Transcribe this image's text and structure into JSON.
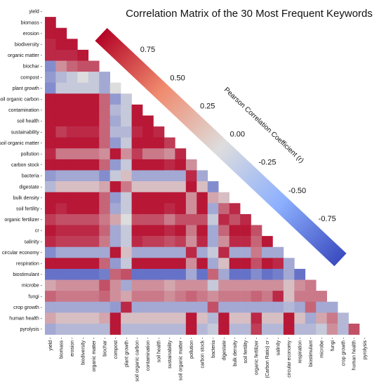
{
  "chart_data": {
    "type": "heatmap",
    "title": "Correlation Matrix of the 30 Most Frequent Keywords",
    "labels": [
      "yield",
      "biomass",
      "erosion",
      "biodiversity",
      "organic matter",
      "biochar",
      "compost",
      "plant growth",
      "soil organic carbon",
      "contamination",
      "soil health",
      "sustainability",
      "soil organic matter",
      "pollution",
      "carbon stock",
      "bacteria",
      "digestate",
      "bulk density",
      "soil fertility",
      "organic fertilizer",
      "cr",
      "salinity",
      "circular economy",
      "respiration",
      "biostimulant",
      "microbe",
      "fungi",
      "crop growth",
      "human health",
      "pyrolysis"
    ],
    "x_tick_labels": [
      "yield",
      "biomass",
      "erosion",
      "biodiversity",
      "organic matter",
      "biochar",
      "compost",
      "plant growth",
      "soil organic carbon",
      "contamination",
      "soil health",
      "sustainability",
      "soil organic matter",
      "pollution",
      "carbon stock",
      "bacteria",
      "digestate",
      "bulk density",
      "soil fertility",
      "organic fertilizer",
      "(Carbon Ratio) cr",
      "salinity",
      "circular economy",
      "respiration",
      "biostimulant",
      "microbe",
      "fungi",
      "crop growth",
      "human health",
      "pyrolysis"
    ],
    "matrix": [
      [],
      [
        0.9
      ],
      [
        0.9,
        0.9
      ],
      [
        0.8,
        0.9,
        0.9
      ],
      [
        0.8,
        0.8,
        0.8,
        0.9
      ],
      [
        -0.5,
        0.3,
        0.5,
        0.6,
        0.6
      ],
      [
        -0.4,
        -0.2,
        -0.1,
        0.0,
        -0.1,
        -0.3
      ],
      [
        -0.5,
        -0.1,
        -0.1,
        -0.1,
        -0.1,
        -0.3,
        0.0
      ],
      [
        0.9,
        0.9,
        0.9,
        0.9,
        0.9,
        0.5,
        -0.4,
        -0.1
      ],
      [
        0.9,
        0.9,
        0.9,
        0.9,
        0.9,
        0.5,
        -0.2,
        -0.1,
        0.9
      ],
      [
        0.9,
        0.9,
        0.9,
        0.9,
        0.9,
        0.5,
        -0.3,
        -0.1,
        0.9,
        0.9
      ],
      [
        0.9,
        0.7,
        0.8,
        0.8,
        0.8,
        0.5,
        -0.2,
        -0.2,
        0.8,
        0.9,
        0.8
      ],
      [
        0.9,
        0.9,
        0.9,
        0.9,
        0.9,
        0.5,
        -0.4,
        -0.1,
        0.9,
        0.9,
        0.9,
        0.7
      ],
      [
        0.8,
        0.4,
        0.4,
        0.4,
        0.4,
        0.3,
        0.9,
        0.3,
        0.7,
        0.4,
        0.4,
        0.3,
        0.8
      ],
      [
        0.9,
        0.9,
        0.9,
        0.9,
        0.9,
        0.5,
        -0.4,
        -0.1,
        0.9,
        0.9,
        0.9,
        0.8,
        0.9,
        0.3
      ],
      [
        -0.4,
        -0.3,
        -0.3,
        -0.3,
        -0.3,
        -0.5,
        -0.1,
        0.1,
        -0.3,
        -0.3,
        -0.3,
        -0.3,
        -0.3,
        0.8,
        -0.3
      ],
      [
        -0.2,
        0.1,
        0.1,
        0.1,
        0.1,
        0.2,
        0.9,
        0.4,
        0.1,
        0.1,
        0.1,
        0.1,
        0.1,
        0.9,
        0.1,
        -0.5
      ],
      [
        0.9,
        0.9,
        0.9,
        0.9,
        0.9,
        0.5,
        -0.4,
        -0.1,
        0.9,
        0.9,
        0.9,
        0.9,
        0.9,
        0.3,
        0.9,
        0.2,
        0.1
      ],
      [
        0.9,
        0.8,
        0.9,
        0.9,
        0.9,
        0.5,
        -0.3,
        -0.1,
        0.9,
        0.9,
        0.9,
        0.8,
        0.9,
        0.3,
        0.9,
        -0.3,
        0.5,
        0.8
      ],
      [
        0.7,
        0.6,
        0.6,
        0.6,
        0.6,
        0.4,
        0.2,
        0.0,
        0.6,
        0.6,
        0.6,
        0.4,
        0.6,
        0.6,
        0.6,
        -0.1,
        0.8,
        0.6,
        0.8
      ],
      [
        0.9,
        0.8,
        0.8,
        0.8,
        0.8,
        0.5,
        -0.3,
        -0.1,
        0.9,
        0.9,
        0.9,
        0.8,
        0.9,
        0.4,
        0.9,
        -0.3,
        0.5,
        0.9,
        0.9,
        0.6
      ],
      [
        0.8,
        0.7,
        0.7,
        0.7,
        0.7,
        0.4,
        -0.3,
        -0.1,
        0.8,
        0.7,
        0.7,
        0.6,
        0.7,
        0.3,
        0.8,
        -0.3,
        0.3,
        0.8,
        0.8,
        0.5,
        0.9
      ],
      [
        -0.5,
        -0.3,
        -0.3,
        -0.3,
        -0.3,
        -0.3,
        0.9,
        0.1,
        -0.3,
        -0.3,
        -0.3,
        -0.3,
        -0.3,
        0.8,
        -0.3,
        -0.1,
        0.8,
        -0.3,
        -0.3,
        0.4,
        -0.3,
        -0.3
      ],
      [
        0.9,
        0.9,
        0.9,
        0.9,
        0.9,
        0.5,
        -0.4,
        -0.1,
        0.9,
        0.9,
        0.9,
        0.9,
        0.9,
        0.3,
        0.9,
        -0.3,
        0.1,
        0.9,
        0.9,
        0.6,
        0.9,
        0.8,
        -0.3
      ],
      [
        -0.7,
        -0.7,
        -0.7,
        -0.7,
        -0.7,
        -0.6,
        0.5,
        0.6,
        -0.7,
        -0.7,
        -0.7,
        -0.7,
        -0.7,
        -0.3,
        -0.7,
        0.5,
        -0.3,
        -0.7,
        -0.7,
        -0.5,
        -0.7,
        -0.6,
        -0.3,
        -0.7
      ],
      [
        0.2,
        0.3,
        0.3,
        0.3,
        0.3,
        0.6,
        0.3,
        -0.3,
        0.3,
        0.3,
        0.3,
        0.2,
        0.3,
        0.3,
        0.3,
        -0.1,
        0.3,
        0.3,
        0.3,
        0.3,
        0.3,
        0.3,
        0.1,
        0.3,
        0.4
      ],
      [
        0.5,
        0.4,
        0.4,
        0.4,
        0.4,
        0.5,
        0.3,
        0.2,
        0.4,
        0.4,
        0.4,
        0.3,
        0.4,
        0.5,
        0.4,
        0.3,
        0.4,
        0.4,
        0.4,
        0.5,
        0.4,
        0.8,
        0.1,
        0.4,
        0.4,
        0.4
      ],
      [
        -0.3,
        -0.3,
        -0.3,
        -0.3,
        -0.3,
        -0.3,
        -0.4,
        0.8,
        -0.3,
        -0.3,
        -0.3,
        -0.3,
        -0.3,
        -0.3,
        -0.3,
        0.6,
        -0.3,
        -0.3,
        -0.3,
        -0.3,
        -0.3,
        -0.3,
        -0.2,
        -0.3,
        0.5,
        -0.3,
        -0.3
      ],
      [
        0.2,
        0.1,
        0.1,
        0.1,
        0.1,
        0.2,
        0.9,
        0.1,
        0.1,
        0.1,
        0.1,
        0.1,
        0.1,
        0.9,
        0.1,
        -0.2,
        0.9,
        0.1,
        0.1,
        0.8,
        0.1,
        0.1,
        0.9,
        0.1,
        -0.3,
        0.2,
        0.4,
        -0.2
      ],
      [
        -0.3,
        -0.2,
        -0.2,
        -0.2,
        -0.2,
        -0.2,
        0.9,
        -0.2,
        -0.2,
        -0.2,
        -0.2,
        -0.2,
        -0.2,
        0.9,
        -0.2,
        -0.1,
        0.9,
        -0.2,
        -0.2,
        0.7,
        -0.2,
        -0.2,
        0.9,
        -0.2,
        -0.2,
        -0.1,
        0.3,
        -0.2,
        0.6
      ]
    ],
    "colorbar": {
      "label": "Pearson Correlation Coefficient (r)",
      "ticks": [
        0.75,
        0.5,
        0.25,
        0.0,
        -0.25,
        -0.5,
        -0.75
      ],
      "tick_labels": [
        "0.75",
        "0.50",
        "0.25",
        "0.00",
        "-0.25",
        "-0.50",
        "-0.75"
      ],
      "range": [
        -1,
        1
      ]
    },
    "colors": {
      "positive": "#b40426",
      "neutral": "#dddddd",
      "negative": "#3b4cc0"
    }
  }
}
